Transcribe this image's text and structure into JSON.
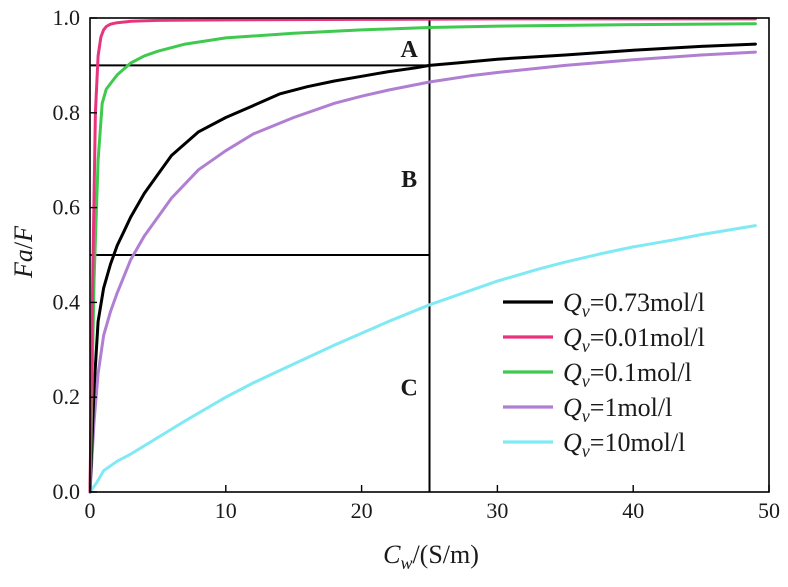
{
  "chart_data": {
    "type": "line",
    "title": "",
    "xlabel": {
      "var": "C",
      "sub": "w",
      "rest": "/(S/m)"
    },
    "ylabel": {
      "num": "Fa",
      "slash": "/",
      "den": "F"
    },
    "xlim": [
      0,
      50
    ],
    "ylim": [
      0,
      1.0
    ],
    "xticks": [
      0,
      10,
      20,
      30,
      40,
      50
    ],
    "xtick_labels": [
      "0",
      "10",
      "20",
      "30",
      "40",
      "50"
    ],
    "yticks": [
      0,
      0.2,
      0.4,
      0.6,
      0.8,
      1.0
    ],
    "ytick_labels": [
      "0.0",
      "0.2",
      "0.4",
      "0.6",
      "0.8",
      "1.0"
    ],
    "grid": false,
    "legend_position": "bottom-right",
    "reference_lines": [
      {
        "orientation": "horizontal",
        "y": 0.9,
        "x_from": 0,
        "x_to": 25
      },
      {
        "orientation": "horizontal",
        "y": 0.5,
        "x_from": 0,
        "x_to": 25
      },
      {
        "orientation": "vertical",
        "x": 25,
        "y_from": 0,
        "y_to": 1.0
      }
    ],
    "region_labels": [
      {
        "text": "A",
        "x": 23.5,
        "y": 0.935
      },
      {
        "text": "B",
        "x": 23.5,
        "y": 0.66
      },
      {
        "text": "C",
        "x": 23.5,
        "y": 0.22
      }
    ],
    "series": [
      {
        "name": "0.73mol/l",
        "legend_var": "Q",
        "legend_sub": "v",
        "legend_value": "=0.73mol/l",
        "color": "#000000",
        "x": [
          0,
          0.3,
          0.6,
          1,
          1.5,
          2,
          2.5,
          3,
          4,
          5,
          6,
          8,
          10,
          12,
          14,
          16,
          18,
          20,
          22,
          24,
          25,
          27,
          30,
          35,
          40,
          45,
          49
        ],
        "y": [
          0,
          0.22,
          0.36,
          0.43,
          0.48,
          0.52,
          0.55,
          0.58,
          0.63,
          0.67,
          0.71,
          0.76,
          0.79,
          0.815,
          0.84,
          0.855,
          0.867,
          0.877,
          0.887,
          0.895,
          0.9,
          0.905,
          0.913,
          0.922,
          0.932,
          0.94,
          0.945
        ]
      },
      {
        "name": "0.01mol/l",
        "legend_var": "Q",
        "legend_sub": "v",
        "legend_value": "=0.01mol/l",
        "color": "#e8347c",
        "x": [
          0,
          0.2,
          0.4,
          0.6,
          0.8,
          1,
          1.2,
          1.5,
          2,
          3,
          5,
          10,
          20,
          30,
          40,
          49
        ],
        "y": [
          0,
          0.45,
          0.8,
          0.92,
          0.96,
          0.975,
          0.982,
          0.987,
          0.99,
          0.993,
          0.995,
          0.996,
          0.997,
          0.998,
          0.998,
          0.998
        ]
      },
      {
        "name": "0.1mol/l",
        "legend_var": "Q",
        "legend_sub": "v",
        "legend_value": "=0.1mol/l",
        "color": "#3fc94f",
        "x": [
          0,
          0.3,
          0.6,
          0.9,
          1.2,
          1.6,
          2,
          3,
          4,
          5,
          7,
          10,
          15,
          20,
          25,
          30,
          40,
          49
        ],
        "y": [
          0,
          0.45,
          0.7,
          0.82,
          0.85,
          0.865,
          0.88,
          0.905,
          0.92,
          0.93,
          0.945,
          0.958,
          0.968,
          0.975,
          0.98,
          0.983,
          0.986,
          0.988
        ]
      },
      {
        "name": "1mol/l",
        "legend_var": "Q",
        "legend_sub": "v",
        "legend_value": "=1mol/l",
        "color": "#b07fd2",
        "x": [
          0,
          0.3,
          0.6,
          1,
          1.5,
          2,
          3,
          4,
          5,
          6,
          8,
          10,
          12,
          15,
          18,
          20,
          22,
          25,
          28,
          30,
          35,
          40,
          45,
          49
        ],
        "y": [
          0,
          0.15,
          0.25,
          0.33,
          0.38,
          0.42,
          0.49,
          0.54,
          0.58,
          0.62,
          0.68,
          0.72,
          0.755,
          0.79,
          0.82,
          0.835,
          0.848,
          0.865,
          0.878,
          0.885,
          0.9,
          0.912,
          0.922,
          0.928
        ]
      },
      {
        "name": "10mol/l",
        "legend_var": "Q",
        "legend_sub": "v",
        "legend_value": "=10mol/l",
        "color": "#7fe9f4",
        "x": [
          0,
          0.5,
          1,
          2,
          3,
          5,
          7,
          10,
          12,
          15,
          18,
          20,
          22,
          25,
          28,
          30,
          33,
          35,
          38,
          40,
          43,
          45,
          49
        ],
        "y": [
          0,
          0.02,
          0.045,
          0.065,
          0.08,
          0.115,
          0.15,
          0.2,
          0.23,
          0.27,
          0.31,
          0.335,
          0.36,
          0.395,
          0.425,
          0.445,
          0.47,
          0.485,
          0.505,
          0.517,
          0.532,
          0.543,
          0.562
        ]
      }
    ]
  }
}
